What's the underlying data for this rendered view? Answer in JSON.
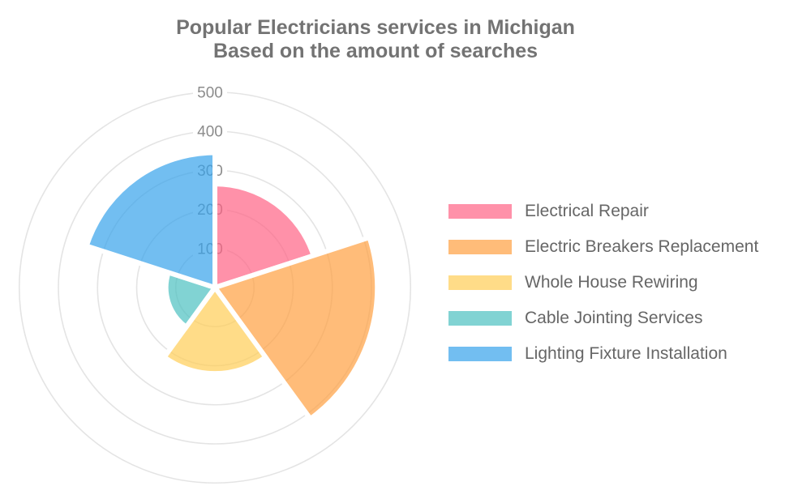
{
  "title": {
    "line1": "Popular Electricians services in Michigan",
    "line2": "Based on the amount of searches"
  },
  "chart_data": {
    "type": "polar-area",
    "title": "Popular Electricians services in Michigan",
    "subtitle": "Based on the amount of searches",
    "categories": [
      "Electrical Repair",
      "Electric Breakers Replacement",
      "Whole House Rewiring",
      "Cable Jointing Services",
      "Lighting Fixture Installation"
    ],
    "values": [
      265,
      415,
      220,
      125,
      345
    ],
    "colors": [
      "#FF6384",
      "#FF9F40",
      "#FFCD56",
      "#4BC0C0",
      "#36A2EB"
    ],
    "fill_opacity": 0.7,
    "radial_ticks": [
      100,
      200,
      300,
      400,
      500
    ],
    "rlim": [
      0,
      500
    ],
    "start_angle_deg": 0,
    "direction": "clockwise",
    "sector_angle_deg": 72,
    "grid": true,
    "angle_lines": false,
    "legend_position": "right"
  },
  "legend": {
    "items": [
      {
        "label": "Electrical Repair",
        "color": "#FF6384"
      },
      {
        "label": "Electric Breakers Replacement",
        "color": "#FF9F40"
      },
      {
        "label": "Whole House Rewiring",
        "color": "#FFCD56"
      },
      {
        "label": "Cable Jointing Services",
        "color": "#4BC0C0"
      },
      {
        "label": "Lighting Fixture Installation",
        "color": "#36A2EB"
      }
    ]
  },
  "styles": {
    "title_color": "#737373",
    "tick_color": "#8c8c8c",
    "legend_text_color": "#666666",
    "grid_color": "#e4e4e4",
    "sector_border_color": "#ffffff",
    "background": "#ffffff"
  }
}
